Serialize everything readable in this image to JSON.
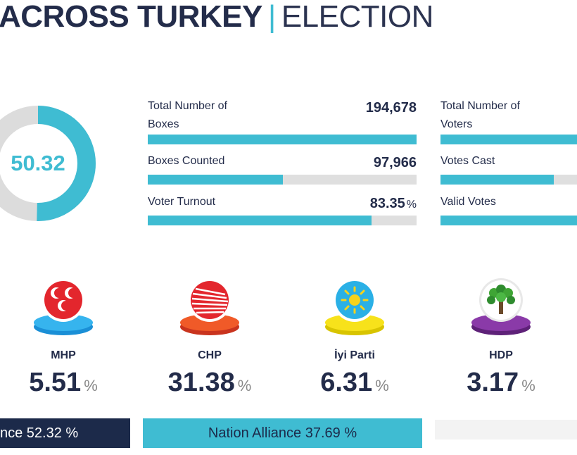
{
  "header": {
    "title_bold": "ACROSS TURKEY",
    "separator": "|",
    "title_light": "ELECTION"
  },
  "donut": {
    "value": "50.32",
    "fraction": 0.5032,
    "color": "#3fbcd2",
    "track_color": "#dcdcdc"
  },
  "stats_left": [
    {
      "label_line1": "Total Number of",
      "label_line2": "Boxes",
      "value": "194,678",
      "unit": "",
      "fill": 1.0
    },
    {
      "label_line1": "Boxes Counted",
      "label_line2": "",
      "value": "97,966",
      "unit": "",
      "fill": 0.5032
    },
    {
      "label_line1": "Voter Turnout",
      "label_line2": "",
      "value": "83.35",
      "unit": "%",
      "fill": 0.8335
    }
  ],
  "stats_right": [
    {
      "label_line1": "Total Number of",
      "label_line2": "Voters",
      "fill": 1.0
    },
    {
      "label_line1": "Votes Cast",
      "label_line2": "",
      "fill": 0.83
    },
    {
      "label_line1": "Valid Votes",
      "label_line2": "",
      "fill": 1.0
    }
  ],
  "parties": [
    {
      "name": "MHP",
      "pct": "5.51",
      "unit": "%",
      "icon": "mhp-crescents-icon",
      "color": "#e3262d"
    },
    {
      "name": "CHP",
      "pct": "31.38",
      "unit": "%",
      "icon": "chp-six-arrows-icon",
      "color": "#e3262d"
    },
    {
      "name": "İyi Parti",
      "pct": "6.31",
      "unit": "%",
      "icon": "iyi-sun-icon",
      "color": "#2ab0e6"
    },
    {
      "name": "HDP",
      "pct": "3.17",
      "unit": "%",
      "icon": "hdp-tree-icon",
      "color": "#7a3494"
    }
  ],
  "alliances": [
    {
      "label": "nce 52.32 %",
      "bg": "#1c2a4a",
      "fg": "#ffffff"
    },
    {
      "label": "Nation Alliance 37.69 %",
      "bg": "#3fbcd2",
      "fg": "#1c2a4a"
    },
    {
      "label": "",
      "bg": "#f3f3f3",
      "fg": "#1c2a4a"
    }
  ]
}
